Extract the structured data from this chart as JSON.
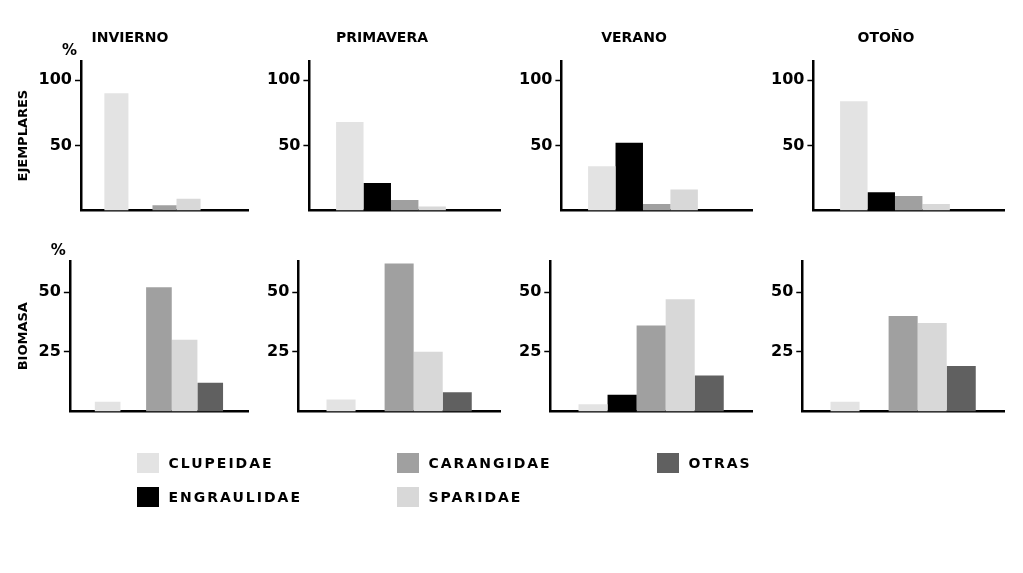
{
  "chart_data": [
    {
      "type": "bar",
      "title": "INVIERNO",
      "ylabel": "EJEMPLARES",
      "annotations": [
        "%"
      ],
      "categories": [
        null
      ],
      "ylim": [
        0,
        115
      ],
      "yticks": [
        50,
        100
      ],
      "tick_labels": "y",
      "series": [
        {
          "color": "#e3e3e3",
          "values": [
            90
          ]
        },
        {
          "color": "#000000",
          "values": [
            0
          ]
        },
        {
          "color": "#a0a0a0",
          "values": [
            4
          ]
        },
        {
          "color": "#d8d8d8",
          "values": [
            9
          ]
        },
        {
          "color": "#606060",
          "values": [
            0
          ]
        }
      ]
    },
    {
      "type": "bar",
      "title": "PRIMAVERA",
      "categories": [
        null
      ],
      "ylim": [
        0,
        115
      ],
      "yticks": [
        50,
        100
      ],
      "tick_labels": "y",
      "series": [
        {
          "color": "#e3e3e3",
          "values": [
            68
          ]
        },
        {
          "color": "#000000",
          "values": [
            21
          ]
        },
        {
          "color": "#a0a0a0",
          "values": [
            8
          ]
        },
        {
          "color": "#d8d8d8",
          "values": [
            3
          ]
        },
        {
          "color": "#606060",
          "values": [
            0
          ]
        }
      ]
    },
    {
      "type": "bar",
      "title": "VERANO",
      "categories": [
        null
      ],
      "ylim": [
        0,
        115
      ],
      "yticks": [
        50,
        100
      ],
      "tick_labels": "y",
      "series": [
        {
          "color": "#e3e3e3",
          "values": [
            34
          ]
        },
        {
          "color": "#000000",
          "values": [
            52
          ]
        },
        {
          "color": "#a0a0a0",
          "values": [
            5
          ]
        },
        {
          "color": "#d8d8d8",
          "values": [
            16
          ]
        },
        {
          "color": "#606060",
          "values": [
            0
          ]
        }
      ]
    },
    {
      "type": "bar",
      "title": "OTOÑO",
      "categories": [
        null
      ],
      "ylim": [
        0,
        115
      ],
      "yticks": [
        50,
        100
      ],
      "tick_labels": "y",
      "series": [
        {
          "color": "#e3e3e3",
          "values": [
            84
          ]
        },
        {
          "color": "#000000",
          "values": [
            14
          ]
        },
        {
          "color": "#a0a0a0",
          "values": [
            11
          ]
        },
        {
          "color": "#d8d8d8",
          "values": [
            5
          ]
        },
        {
          "color": "#606060",
          "values": [
            0
          ]
        }
      ]
    },
    {
      "type": "bar",
      "ylabel": "BIOMASA",
      "annotations": [
        "%"
      ],
      "categories": [
        null
      ],
      "ylim": [
        0,
        63
      ],
      "yticks": [
        25,
        50
      ],
      "tick_labels": "y",
      "series": [
        {
          "color": "#e3e3e3",
          "values": [
            4
          ]
        },
        {
          "color": "#000000",
          "values": [
            0
          ]
        },
        {
          "color": "#a0a0a0",
          "values": [
            52
          ]
        },
        {
          "color": "#d8d8d8",
          "values": [
            30
          ]
        },
        {
          "color": "#606060",
          "values": [
            12
          ]
        }
      ]
    },
    {
      "type": "bar",
      "categories": [
        null
      ],
      "ylim": [
        0,
        63
      ],
      "yticks": [
        25,
        50
      ],
      "tick_labels": "y",
      "series": [
        {
          "color": "#e3e3e3",
          "values": [
            5
          ]
        },
        {
          "color": "#000000",
          "values": [
            0
          ]
        },
        {
          "color": "#a0a0a0",
          "values": [
            62
          ]
        },
        {
          "color": "#d8d8d8",
          "values": [
            25
          ]
        },
        {
          "color": "#606060",
          "values": [
            8
          ]
        }
      ]
    },
    {
      "type": "bar",
      "categories": [
        null
      ],
      "ylim": [
        0,
        63
      ],
      "yticks": [
        25,
        50
      ],
      "tick_labels": "y",
      "series": [
        {
          "color": "#e3e3e3",
          "values": [
            3
          ]
        },
        {
          "color": "#000000",
          "values": [
            7
          ]
        },
        {
          "color": "#a0a0a0",
          "values": [
            36
          ]
        },
        {
          "color": "#d8d8d8",
          "values": [
            47
          ]
        },
        {
          "color": "#606060",
          "values": [
            15
          ]
        }
      ]
    },
    {
      "type": "bar",
      "categories": [
        null
      ],
      "ylim": [
        0,
        63
      ],
      "yticks": [
        25,
        50
      ],
      "tick_labels": "y",
      "legend": "bottom",
      "series": [
        {
          "name": "CLUPEIDAE",
          "color": "#e3e3e3",
          "values": [
            4
          ]
        },
        {
          "name": "ENGRAULIDAE",
          "color": "#000000",
          "values": [
            0
          ]
        },
        {
          "name": "CARANGIDAE",
          "color": "#a0a0a0",
          "values": [
            40
          ]
        },
        {
          "name": "SPARIDAE",
          "color": "#d8d8d8",
          "values": [
            37
          ]
        },
        {
          "name": "OTRAS",
          "color": "#606060",
          "values": [
            19
          ]
        }
      ]
    }
  ]
}
